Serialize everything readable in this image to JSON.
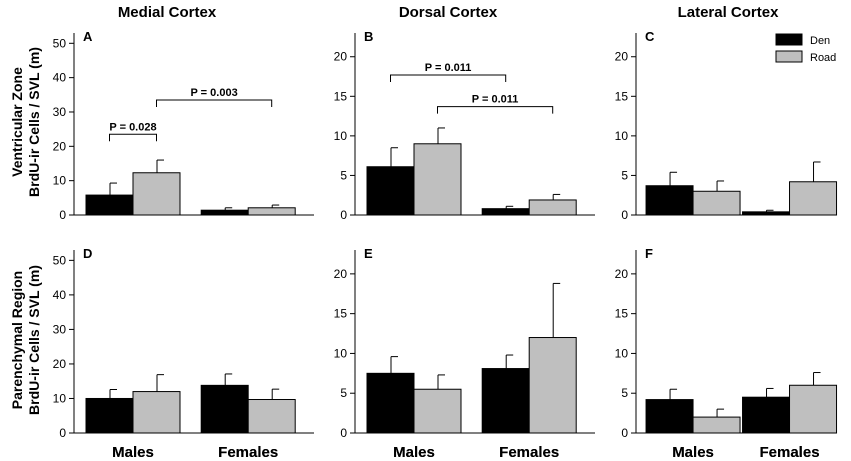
{
  "figure": {
    "column_titles": [
      "Medial Cortex",
      "Dorsal Cortex",
      "Lateral Cortex"
    ],
    "row_titles": [
      [
        "Ventricular Zone",
        "BrdU-ir Cells / SVL (m)"
      ],
      [
        "Parenchymal Region",
        "BrdU-ir Cells / SVL (m)"
      ]
    ]
  },
  "legend": {
    "items": [
      {
        "label": "Den",
        "color": "#000000"
      },
      {
        "label": "Road",
        "color": "#bfbfbf"
      }
    ]
  },
  "chart_data": [
    {
      "panel": "A",
      "type": "bar",
      "column": "Medial Cortex",
      "row": "Ventricular Zone",
      "categories": [
        "Males",
        "Females"
      ],
      "series": [
        {
          "name": "Den",
          "color": "#000000",
          "values": [
            5.8,
            1.4
          ],
          "errors": [
            3.5,
            0.7
          ]
        },
        {
          "name": "Road",
          "color": "#bfbfbf",
          "values": [
            12.3,
            2.1
          ],
          "errors": [
            3.7,
            0.8
          ]
        }
      ],
      "ylim": [
        0,
        53
      ],
      "yticks": [
        0,
        10,
        20,
        30,
        40,
        50
      ],
      "annotations": [
        {
          "text": "P = 0.028",
          "from": [
            0,
            0
          ],
          "to": [
            0,
            1
          ],
          "level": 23.5
        },
        {
          "text": "P = 0.003",
          "from": [
            0,
            1
          ],
          "to": [
            1,
            1
          ],
          "level": 33.5
        }
      ]
    },
    {
      "panel": "B",
      "type": "bar",
      "column": "Dorsal Cortex",
      "row": "Ventricular Zone",
      "categories": [
        "Males",
        "Females"
      ],
      "series": [
        {
          "name": "Den",
          "color": "#000000",
          "values": [
            6.1,
            0.8
          ],
          "errors": [
            2.4,
            0.3
          ]
        },
        {
          "name": "Road",
          "color": "#bfbfbf",
          "values": [
            9.0,
            1.9
          ],
          "errors": [
            2.0,
            0.7
          ]
        }
      ],
      "ylim": [
        0,
        23
      ],
      "yticks": [
        0,
        5,
        10,
        15,
        20
      ],
      "annotations": [
        {
          "text": "P = 0.011",
          "from": [
            0,
            0
          ],
          "to": [
            1,
            0
          ],
          "level": 17.7
        },
        {
          "text": "P = 0.011",
          "from": [
            0,
            1
          ],
          "to": [
            1,
            1
          ],
          "level": 13.7
        }
      ]
    },
    {
      "panel": "C",
      "type": "bar",
      "column": "Lateral Cortex",
      "row": "Ventricular Zone",
      "categories": [
        "Males",
        "Females"
      ],
      "series": [
        {
          "name": "Den",
          "color": "#000000",
          "values": [
            3.7,
            0.4
          ],
          "errors": [
            1.7,
            0.2
          ]
        },
        {
          "name": "Road",
          "color": "#bfbfbf",
          "values": [
            3.0,
            4.2
          ],
          "errors": [
            1.3,
            2.5
          ]
        }
      ],
      "ylim": [
        0,
        23
      ],
      "yticks": [
        0,
        5,
        10,
        15,
        20
      ],
      "annotations": []
    },
    {
      "panel": "D",
      "type": "bar",
      "column": "Medial Cortex",
      "row": "Parenchymal Region",
      "categories": [
        "Males",
        "Females"
      ],
      "series": [
        {
          "name": "Den",
          "color": "#000000",
          "values": [
            10.0,
            13.8
          ],
          "errors": [
            2.6,
            3.3
          ]
        },
        {
          "name": "Road",
          "color": "#bfbfbf",
          "values": [
            12.0,
            9.7
          ],
          "errors": [
            4.9,
            3.0
          ]
        }
      ],
      "ylim": [
        0,
        53
      ],
      "yticks": [
        0,
        10,
        20,
        30,
        40,
        50
      ],
      "annotations": []
    },
    {
      "panel": "E",
      "type": "bar",
      "column": "Dorsal Cortex",
      "row": "Parenchymal Region",
      "categories": [
        "Males",
        "Females"
      ],
      "series": [
        {
          "name": "Den",
          "color": "#000000",
          "values": [
            7.5,
            8.1
          ],
          "errors": [
            2.1,
            1.7
          ]
        },
        {
          "name": "Road",
          "color": "#bfbfbf",
          "values": [
            5.5,
            12.0
          ],
          "errors": [
            1.8,
            6.8
          ]
        }
      ],
      "ylim": [
        0,
        23
      ],
      "yticks": [
        0,
        5,
        10,
        15,
        20
      ],
      "annotations": []
    },
    {
      "panel": "F",
      "type": "bar",
      "column": "Lateral Cortex",
      "row": "Parenchymal Region",
      "categories": [
        "Males",
        "Females"
      ],
      "series": [
        {
          "name": "Den",
          "color": "#000000",
          "values": [
            4.2,
            4.5
          ],
          "errors": [
            1.3,
            1.1
          ]
        },
        {
          "name": "Road",
          "color": "#bfbfbf",
          "values": [
            2.0,
            6.0
          ],
          "errors": [
            1.0,
            1.6
          ]
        }
      ],
      "ylim": [
        0,
        23
      ],
      "yticks": [
        0,
        5,
        10,
        15,
        20
      ],
      "annotations": []
    }
  ]
}
